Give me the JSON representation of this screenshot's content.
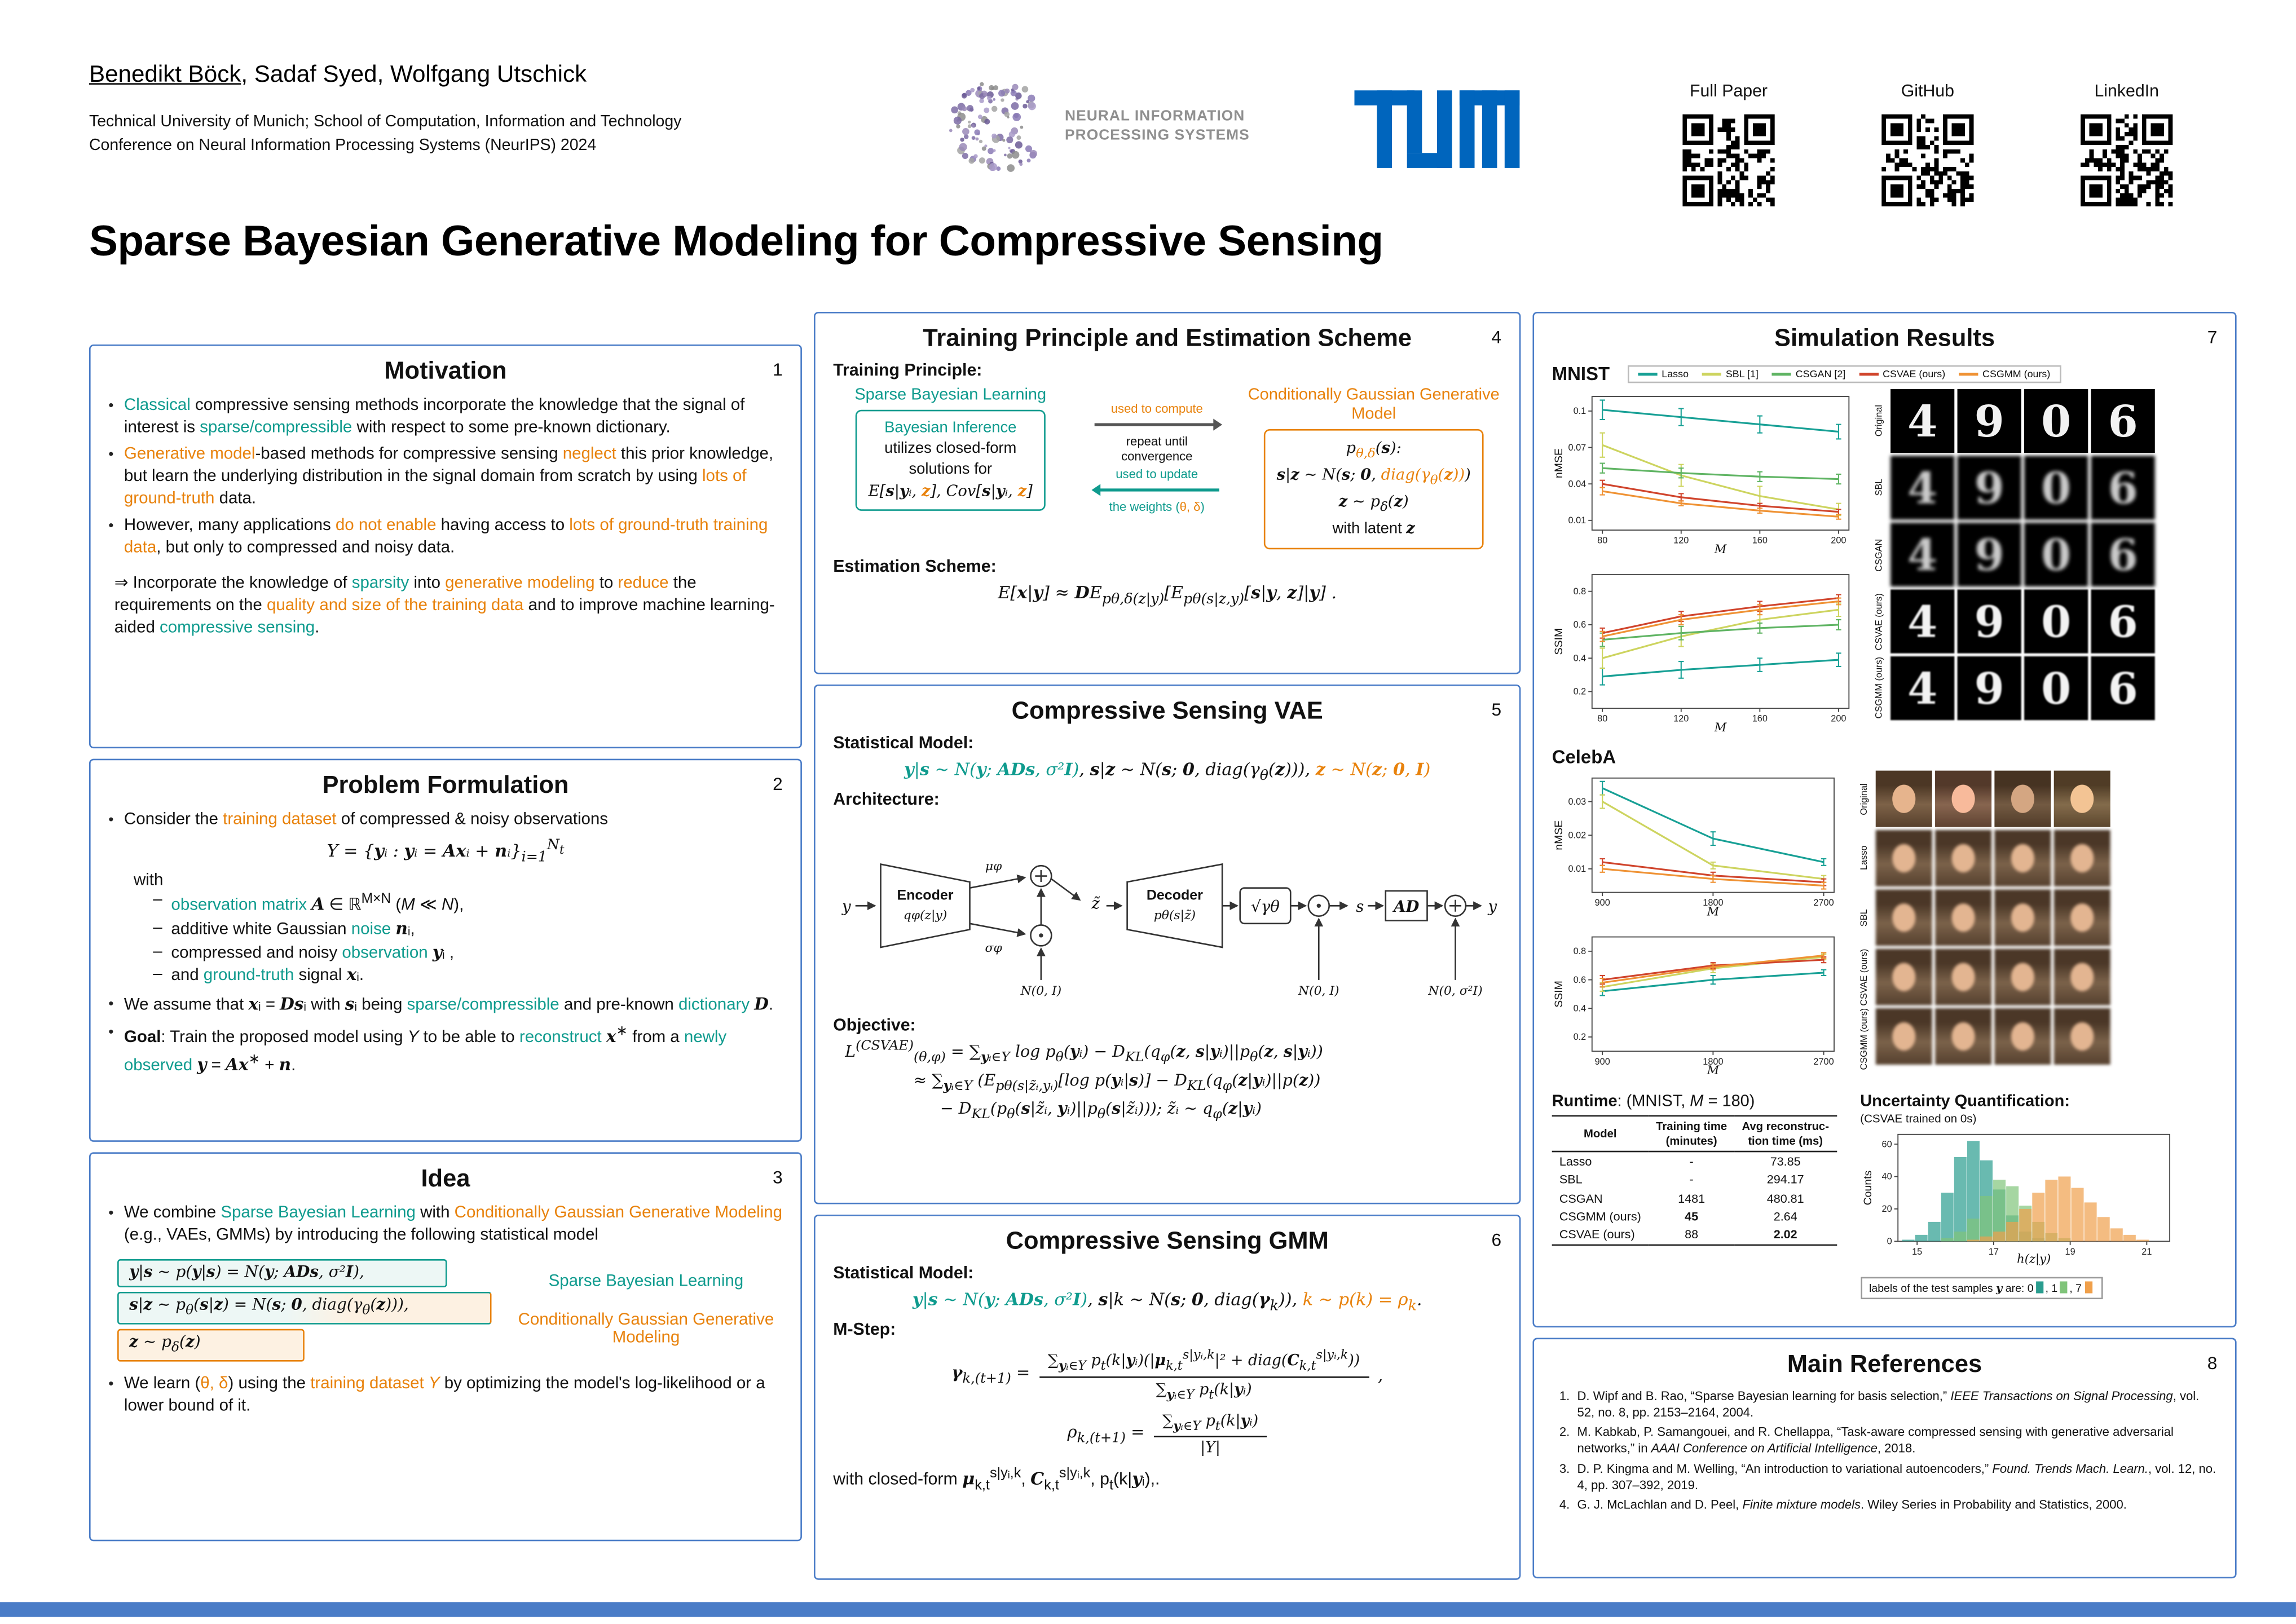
{
  "colors": {
    "teal": "#0f9b8e",
    "orange": "#e8820c",
    "box_blue": "#4a7cc7",
    "tum_blue": "#0065BD",
    "lasso": "#17a095",
    "sbl": "#cdd45f",
    "csgan": "#5fb463",
    "csvae": "#d0442c",
    "csgmm": "#ef9234",
    "hist0": "#2a9d8f",
    "hist1": "#80c47a",
    "hist7": "#f0a04b"
  },
  "header": {
    "authors": "[u]Benedikt Böck[/u], Sadaf Syed, Wolfgang Utschick",
    "affiliation1": "Technical University of Munich; School of Computation, Information and Technology",
    "affiliation2": "Conference on Neural Information Processing Systems (NeurIPS) 2024",
    "neurips_line1": "NEURAL INFORMATION",
    "neurips_line2": "PROCESSING SYSTEMS",
    "qr": [
      "Full Paper",
      "GitHub",
      "LinkedIn"
    ]
  },
  "title": "Sparse Bayesian Generative Modeling for Compressive Sensing",
  "motivation": {
    "title": "Motivation",
    "number": "1",
    "bullets": [
      "[t]Classical[/t] compressive sensing methods incorporate the knowledge that the signal of interest is [t]sparse/compressible[/t] with respect to some pre-known dictionary.",
      "[o]Generative model[/o]-based methods for compressive sensing [o]neglect[/o] this prior knowledge, but learn the underlying distribution in the signal domain from scratch by using [o]lots of ground-truth[/o] data.",
      "However, many applications [o]do not enable[/o] having access to [o]lots of ground-truth training data[/o], but only to compressed and noisy data."
    ],
    "conclusion": "⇒ Incorporate the knowledge of [t]sparsity[/t] into [o]generative modeling[/o] to [o]reduce[/o] the requirements on the [o]quality and size of the training data[/o] and to improve machine learning-aided [t]compressive sensing[/t]."
  },
  "problem": {
    "title": "Problem Formulation",
    "number": "2",
    "intro": "Consider the [o]training dataset[/o] of compressed & noisy observations",
    "formula": "[i]Y[/i] = {[m]y[/m]ᵢ : [m]y[/m]ᵢ = [m]Ax[/m]ᵢ + [m]n[/m]ᵢ}_{i=1}^{N_{t}}",
    "with_label": "with",
    "with_items": [
      "[t]observation matrix[/t] [m]A[/m] ∈ ℝ^{M×N} ([i]M[/i] ≪ [i]N[/i]),",
      "additive white Gaussian [t]noise[/t] [m]n[/m]ᵢ,",
      "compressed and noisy [t]observation[/t] [m]y[/m]ᵢ ,",
      "and [t]ground-truth[/t] signal [m]x[/m]ᵢ."
    ],
    "assume": "We assume that [m]x[/m]ᵢ = [m]Ds[/m]ᵢ with [m]s[/m]ᵢ being [t]sparse/compressible[/t] and pre-known [t]dictionary[/t] [m]D[/m].",
    "goal": "[b]Goal[/b]: Train the proposed model using [i]Y[/i] to be able to [t]reconstruct[/t] [m]x[/m]^{∗} from a [t]newly observed[/t] [m]y[/m] = [m]Ax[/m]^{∗} + [m]n[/m]."
  },
  "idea": {
    "title": "Idea",
    "number": "3",
    "intro": "We combine [t]Sparse Bayesian Learning[/t] with [o]Conditionally Gaussian Generative Modeling[/o] (e.g., VAEs, GMMs) by introducing the following statistical model",
    "rows": [
      "[m]y[/m]|[m]s[/m] ∼ p([m]y[/m]|[m]s[/m]) = [i]N[/i]([m]y[/m]; [m]ADs[/m], σ²[b]I[/b]),",
      "[m]s[/m]|[m]z[/m] ∼ p_{θ}([m]s[/m]|[m]z[/m]) = [i]N[/i]([m]s[/m]; [b]0[/b], diag(γ_{θ}([m]z[/m]))),",
      "[m]z[/m] ∼ p_{δ}([m]z[/m])"
    ],
    "label_sbl": "Sparse Bayesian Learning",
    "label_cggm": "Conditionally Gaussian Generative Modeling",
    "learn": "We learn ([o]θ, δ[/o]) using the [o]training dataset[/o] [o][i]Y[/i][/o] by optimizing the model's log-likelihood or a lower bound of it."
  },
  "training": {
    "title": "Training Principle and Estimation Scheme",
    "number": "4",
    "tp_label": "Training Principle:",
    "sbl_label": "Sparse Bayesian Learning",
    "box_left_title": "Bayesian Inference",
    "box_left_l1": "utilizes closed-form",
    "box_left_l2": "solutions for",
    "box_left_l3": "E[[m]s[/m]|[m]y[/m]ᵢ, [o][m]z[/m][/o]], Cov[[m]s[/m]|[m]y[/m]ᵢ, [o][m]z[/m][/o]]",
    "arrow_top_label": "used to compute",
    "repeat_label": "repeat until convergence",
    "arrow_bottom1": "used to update",
    "arrow_bottom2": "the weights ([o]θ, δ[/o])",
    "cggm_label": "Conditionally Gaussian Generative Model",
    "box_right_l1": "p_{[o]θ,δ[/o]}([m]s[/m]):",
    "box_right_l2": "[m]s[/m]|[m]z[/m] ∼ [i]N[/i]([m]s[/m]; [b]0[/b], [o]diag(γ_{θ}([m]z[/m]))[/o])",
    "box_right_l3": "[m]z[/m] ∼ p_{δ}([m]z[/m])",
    "box_right_l4": "with latent [m]z[/m]",
    "es_label": "Estimation Scheme:",
    "es_formula": "E[[m]x[/m]|[m]y[/m]] ≈ [m]D[/m]E_{pθ,δ(z|y)}[E_{pθ(s|z,y)}[[m]s[/m]|[m]y[/m], [m]z[/m]]|[m]y[/m]] ."
  },
  "vae": {
    "title": "Compressive Sensing VAE",
    "number": "5",
    "stat_label": "Statistical Model:",
    "stat": "[t][m]y[/m]|[m]s[/m] ∼ [i]N[/i]([m]y[/m]; [m]ADs[/m], σ²[b]I[/b])[/t],  [m]s[/m]|[m]z[/m] ∼ [i]N[/i]([m]s[/m]; [b]0[/b], diag(γ_{θ}([m]z[/m]))),  [o][m]z[/m] ∼ [i]N[/i]([m]z[/m]; [b]0[/b], [b]I[/b])[/o]",
    "arch_label": "Architecture:",
    "diagram": {
      "input": "y",
      "encoder": "Encoder",
      "encoder_sub": "qφ(z|y)",
      "mu": "μφ",
      "sigma": "σφ",
      "ztilde": "z̃",
      "decoder": "Decoder",
      "decoder_sub": "pθ(s|z̃)",
      "gamma": "√γθ",
      "s_out": "s",
      "ad": "AD",
      "output": "y",
      "noise1": "N(0, I)",
      "noise2": "N(0, I)",
      "noise3": "N(0, σ²I)"
    },
    "obj_label": "Objective:",
    "obj1": "L^{(CSVAE)}_{(θ,φ)} = ∑_{[m]y[/m]ᵢ∈Y} log p_{θ}([m]y[/m]ᵢ) − D_{KL}(q_{φ}([m]z[/m], [m]s[/m]|[m]y[/m]ᵢ)||p_{θ}([m]z[/m], [m]s[/m]|[m]y[/m]ᵢ))",
    "obj2": "≈ ∑_{[m]y[/m]ᵢ∈Y} (E_{pθ(s|z̃ᵢ,yᵢ)}[log p([m]y[/m]ᵢ|[m]s[/m])] − D_{KL}(q_{φ}([m]z[/m]|[m]y[/m]ᵢ)||p([m]z[/m]))",
    "obj3": "− D_{KL}(p_{θ}([m]s[/m]|z̃ᵢ, [m]y[/m]ᵢ)||p_{θ}([m]s[/m]|z̃ᵢ)));   z̃ᵢ ∼ q_{φ}([m]z[/m]|[m]y[/m]ᵢ)"
  },
  "gmm": {
    "title": "Compressive Sensing GMM",
    "number": "6",
    "stat_label": "Statistical Model:",
    "stat": "[t][m]y[/m]|[m]s[/m] ∼ [i]N[/i]([m]y[/m]; [m]ADs[/m], σ²[b]I[/b])[/t],  [m]s[/m]|k ∼ [i]N[/i]([m]s[/m]; [b]0[/b], diag([m]γ[/m]_{k})),  [o]k ∼ p(k) = ρ_{k}[/o].",
    "mstep_label": "M-Step:",
    "gamma_lhs": "[m]γ[/m]_{k,(t+1)} =",
    "gamma_num": "∑_{[m]y[/m]ᵢ∈Y} p_{t}(k|[m]y[/m]ᵢ)(|[m]μ[/m]_{k,t}^{s|yᵢ,k}|² + diag([m]C[/m]_{k,t}^{s|yᵢ,k}))",
    "gamma_den": "∑_{[m]y[/m]ᵢ∈Y} p_{t}(k|[m]y[/m]ᵢ)",
    "comma": ",",
    "rho_lhs": "ρ_{k,(t+1)} =",
    "rho_num": "∑_{[m]y[/m]ᵢ∈Y} p_{t}(k|[m]y[/m]ᵢ)",
    "rho_den": "|Y|",
    "closed": "with closed-form [m]μ[/m]_{k,t}^{s|yᵢ,k}, [m]C[/m]_{k,t}^{s|yᵢ,k}, p_{t}(k|[m]y[/m]ᵢ),."
  },
  "results": {
    "title": "Simulation Results",
    "number": "7",
    "mnist_label": "MNIST",
    "celeba_label": "CelebA",
    "legend": [
      {
        "label": "Lasso",
        "color_key": "lasso"
      },
      {
        "label": "SBL [1]",
        "color_key": "sbl"
      },
      {
        "label": "CSGAN [2]",
        "color_key": "csgan"
      },
      {
        "label": "CSVAE (ours)",
        "color_key": "csvae"
      },
      {
        "label": "CSGMM (ours)",
        "color_key": "csgmm"
      }
    ],
    "mnist_rows": [
      "Original",
      "SBL",
      "CSGAN",
      "CSVAE (ours)",
      "CSGMM (ours)"
    ],
    "mnist_digits": [
      "4",
      "9",
      "0",
      "6"
    ],
    "celeba_rows": [
      "Original",
      "Lasso",
      "SBL",
      "CSVAE (ours)",
      "CSGMM (ours)"
    ],
    "runtime_title": "[b]Runtime[/b]: (MNIST, [i]M[/i] = 180)",
    "runtime_header": [
      [
        "Model",
        ""
      ],
      [
        "Training time",
        "(minutes)"
      ],
      [
        "Avg reconstruc-",
        "tion time (ms)"
      ]
    ],
    "runtime_rows": [
      [
        "Lasso",
        "-",
        "73.85"
      ],
      [
        "SBL",
        "-",
        "294.17"
      ],
      [
        "CSGAN",
        "1481",
        "480.81"
      ],
      [
        "CSGMM (ours)",
        "[b]45[/b]",
        "2.64"
      ],
      [
        "CSVAE (ours)",
        "88",
        "[b]2.02[/b]"
      ]
    ],
    "uq_title": "[b]Uncertainty Quantification:[/b]",
    "uq_sub": "(CSVAE trained on 0s)",
    "uq_caption": "labels of the test samples [m]y[/m] are: 0[sq t], 1[sq g], 7[sq o]"
  },
  "references": {
    "title": "Main References",
    "number": "8",
    "items": [
      {
        "n": "1.",
        "text": "D. Wipf and B. Rao, “Sparse Bayesian learning for basis selection,” [i]IEEE Transactions on Signal Processing[/i], vol. 52, no. 8, pp. 2153–2164, 2004."
      },
      {
        "n": "2.",
        "text": "M. Kabkab, P. Samangouei, and R. Chellappa, “Task-aware compressed sensing with generative adversarial networks,” in [i]AAAI Conference on Artificial Intelligence[/i], 2018."
      },
      {
        "n": "3.",
        "text": "D. P. Kingma and M. Welling, “An introduction to variational autoencoders,” [i]Found. Trends Mach. Learn.[/i], vol. 12, no. 4, pp. 307–392, 2019."
      },
      {
        "n": "4.",
        "text": "G. J. McLachlan and D. Peel, [i]Finite mixture models[/i]. Wiley Series in Probability and Statistics, 2000."
      }
    ]
  },
  "chart_data": {
    "mnist_nmse": {
      "type": "line",
      "x": [
        80,
        120,
        160,
        200
      ],
      "xlabel": "M",
      "ylabel": "nMSE",
      "ylim": [
        0.002,
        0.112
      ],
      "yticks": [
        0.01,
        0.04,
        0.07,
        0.1
      ],
      "grid": false,
      "series": [
        {
          "name": "Lasso",
          "color_key": "lasso",
          "values": [
            0.101,
            0.095,
            0.089,
            0.083
          ],
          "err": [
            0.008,
            0.007,
            0.007,
            0.006
          ]
        },
        {
          "name": "SBL [1]",
          "color_key": "sbl",
          "values": [
            0.072,
            0.047,
            0.03,
            0.019
          ],
          "err": [
            0.01,
            0.009,
            0.008,
            0.005
          ]
        },
        {
          "name": "CSGAN [2]",
          "color_key": "csgan",
          "values": [
            0.053,
            0.049,
            0.046,
            0.044
          ],
          "err": [
            0.004,
            0.004,
            0.004,
            0.004
          ]
        },
        {
          "name": "CSVAE (ours)",
          "color_key": "csvae",
          "values": [
            0.04,
            0.029,
            0.022,
            0.017
          ],
          "err": [
            0.003,
            0.003,
            0.002,
            0.002
          ]
        },
        {
          "name": "CSGMM (ours)",
          "color_key": "csgmm",
          "values": [
            0.034,
            0.024,
            0.018,
            0.013
          ],
          "err": [
            0.003,
            0.002,
            0.002,
            0.002
          ]
        }
      ]
    },
    "mnist_ssim": {
      "type": "line",
      "x": [
        80,
        120,
        160,
        200
      ],
      "xlabel": "M",
      "ylabel": "SSIM",
      "ylim": [
        0.1,
        0.9
      ],
      "yticks": [
        0.2,
        0.4,
        0.6,
        0.8
      ],
      "grid": false,
      "series": [
        {
          "name": "Lasso",
          "color_key": "lasso",
          "values": [
            0.29,
            0.33,
            0.36,
            0.39
          ],
          "err": [
            0.05,
            0.05,
            0.04,
            0.04
          ]
        },
        {
          "name": "SBL [1]",
          "color_key": "sbl",
          "values": [
            0.4,
            0.53,
            0.63,
            0.69
          ],
          "err": [
            0.06,
            0.06,
            0.05,
            0.04
          ]
        },
        {
          "name": "CSGAN [2]",
          "color_key": "csgan",
          "values": [
            0.51,
            0.55,
            0.58,
            0.6
          ],
          "err": [
            0.04,
            0.04,
            0.03,
            0.03
          ]
        },
        {
          "name": "CSVAE (ours)",
          "color_key": "csvae",
          "values": [
            0.55,
            0.65,
            0.71,
            0.76
          ],
          "err": [
            0.03,
            0.03,
            0.03,
            0.02
          ]
        },
        {
          "name": "CSGMM (ours)",
          "color_key": "csgmm",
          "values": [
            0.53,
            0.63,
            0.69,
            0.74
          ],
          "err": [
            0.03,
            0.03,
            0.03,
            0.02
          ]
        }
      ]
    },
    "celeba_nmse": {
      "type": "line",
      "x": [
        900,
        1800,
        2700
      ],
      "xlabel": "M",
      "ylabel": "nMSE",
      "ylim": [
        0.003,
        0.037
      ],
      "yticks": [
        0.01,
        0.02,
        0.03
      ],
      "grid": false,
      "series": [
        {
          "name": "Lasso",
          "color_key": "lasso",
          "values": [
            0.034,
            0.019,
            0.012
          ],
          "err": [
            0.002,
            0.002,
            0.001
          ]
        },
        {
          "name": "SBL [1]",
          "color_key": "sbl",
          "values": [
            0.03,
            0.011,
            0.007
          ],
          "err": [
            0.002,
            0.001,
            0.001
          ]
        },
        {
          "name": "CSVAE (ours)",
          "color_key": "csvae",
          "values": [
            0.012,
            0.008,
            0.006
          ],
          "err": [
            0.001,
            0.001,
            0.001
          ]
        },
        {
          "name": "CSGMM (ours)",
          "color_key": "csgmm",
          "values": [
            0.01,
            0.007,
            0.005
          ],
          "err": [
            0.001,
            0.001,
            0.001
          ]
        }
      ]
    },
    "celeba_ssim": {
      "type": "line",
      "x": [
        900,
        1800,
        2700
      ],
      "xlabel": "M",
      "ylabel": "SSIM",
      "ylim": [
        0.1,
        0.9
      ],
      "yticks": [
        0.2,
        0.4,
        0.6,
        0.8
      ],
      "grid": false,
      "series": [
        {
          "name": "Lasso",
          "color_key": "lasso",
          "values": [
            0.52,
            0.6,
            0.65
          ],
          "err": [
            0.03,
            0.03,
            0.02
          ]
        },
        {
          "name": "SBL [1]",
          "color_key": "sbl",
          "values": [
            0.55,
            0.68,
            0.76
          ],
          "err": [
            0.03,
            0.03,
            0.02
          ]
        },
        {
          "name": "CSVAE (ours)",
          "color_key": "csvae",
          "values": [
            0.6,
            0.7,
            0.74
          ],
          "err": [
            0.03,
            0.02,
            0.02
          ]
        },
        {
          "name": "CSGMM (ours)",
          "color_key": "csgmm",
          "values": [
            0.58,
            0.69,
            0.77
          ],
          "err": [
            0.03,
            0.02,
            0.02
          ]
        }
      ]
    },
    "uncertainty_hist": {
      "type": "histogram",
      "xlabel": "h(z|y)",
      "ylabel": "Counts",
      "xlim": [
        14.5,
        21.6
      ],
      "ylim": [
        0,
        66
      ],
      "yticks": [
        0,
        20,
        40,
        60
      ],
      "xticks": [
        15,
        17,
        19,
        21
      ],
      "bin_start": 14.6,
      "bin_width": 0.34,
      "series": [
        {
          "name": "0",
          "color_key": "hist0",
          "counts": [
            1,
            4,
            12,
            30,
            52,
            62,
            50,
            32,
            16,
            6,
            2,
            0,
            0,
            0,
            0,
            0,
            0,
            0,
            0,
            0
          ]
        },
        {
          "name": "1",
          "color_key": "hist1",
          "counts": [
            0,
            0,
            0,
            2,
            6,
            14,
            28,
            38,
            34,
            22,
            12,
            5,
            2,
            0,
            0,
            0,
            0,
            0,
            0,
            0
          ]
        },
        {
          "name": "7",
          "color_key": "hist7",
          "counts": [
            0,
            0,
            0,
            0,
            0,
            1,
            3,
            6,
            12,
            20,
            30,
            38,
            40,
            33,
            24,
            15,
            8,
            4,
            1,
            0
          ]
        }
      ]
    }
  }
}
